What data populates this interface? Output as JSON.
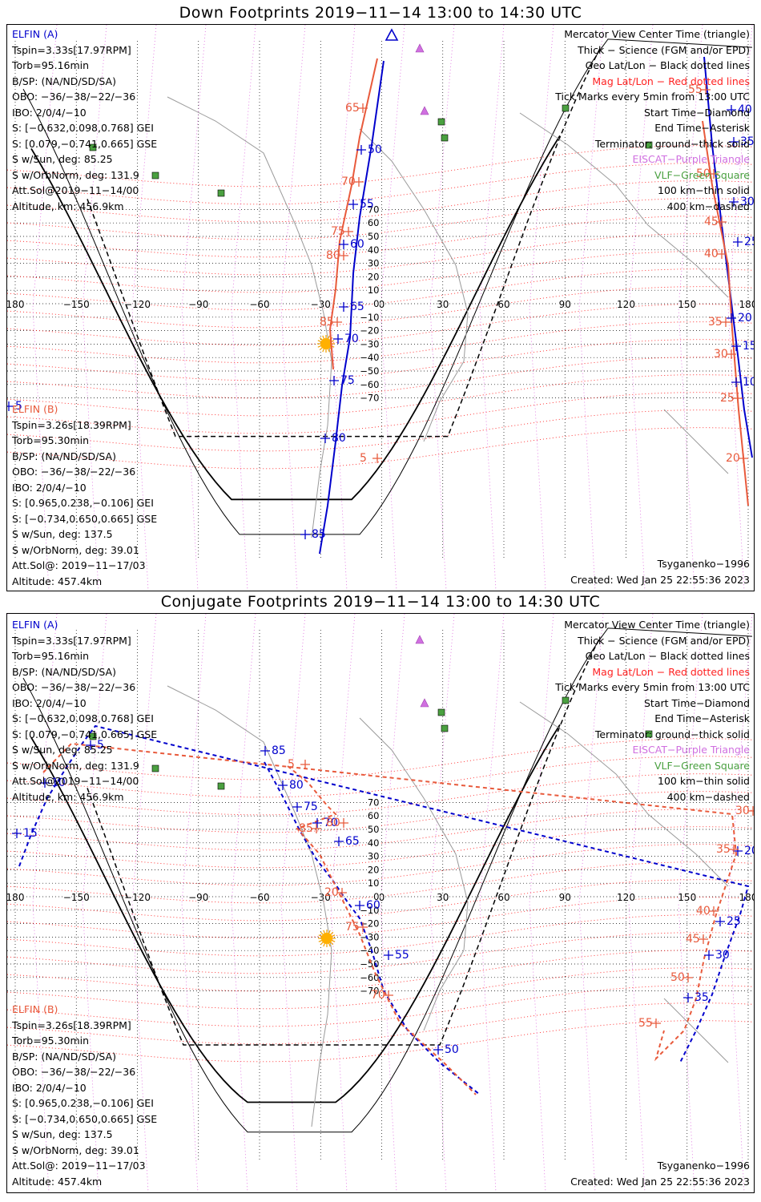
{
  "panels": [
    {
      "title": "Down Footprints 2019−11−14 13:00 to 14:30 UTC",
      "model": "Tsyganenko−1996",
      "created": "Created: Wed Jan 25 22:55:36 2023",
      "elfin_a": {
        "header": "ELFIN (A)",
        "lines": [
          "Tspin=3.33s[17.97RPM]",
          "Torb=95.16min",
          "B/SP: (NA/ND/SD/SA)",
          "OBO: −36/−38/−22/−36",
          "IBO: 2/0/4/−10",
          "S: [−0.632,0.098,0.768] GEI",
          "S: [0.079,−0.741,0.665] GSE",
          "S w/Sun, deg: 85.25",
          "S w/OrbNorm, deg: 131.9",
          "Att.Sol@2019−11−14/00",
          "Altitude, km: 456.9km"
        ]
      },
      "elfin_b": {
        "header": "ELFIN (B)",
        "lines": [
          "Tspin=3.26s[18.39RPM]",
          "Torb=95.30min",
          "B/SP: (NA/ND/SD/SA)",
          "OBO: −36/−38/−22/−36",
          "IBO: 2/0/4/−10",
          "S: [0.965,0.238,−0.106] GEI",
          "S: [−0.734,0.650,0.665] GSE",
          "S w/Sun, deg: 137.5",
          "S w/OrbNorm, deg: 39.01",
          "Att.Sol@: 2019−11−17/03",
          "Altitude: 457.4km"
        ]
      },
      "legend": [
        {
          "text": "Mercator View Center Time (triangle)",
          "color": "#000000"
        },
        {
          "text": "Thick − Science (FGM and/or EPD)",
          "color": "#000000"
        },
        {
          "text": "Geo Lat/Lon − Black dotted lines",
          "color": "#000000"
        },
        {
          "text": "Mag Lat/Lon − Red dotted lines",
          "color": "#ff2222"
        },
        {
          "text": "Tick Marks every 5min from 13:00 UTC",
          "color": "#000000"
        },
        {
          "text": "Start Time−Diamond",
          "color": "#000000"
        },
        {
          "text": "End Time−Asterisk",
          "color": "#000000"
        },
        {
          "text": "Terminator: ground−thick solid",
          "color": "#000000"
        },
        {
          "text": "EISCAT−Purple Triangle",
          "color": "#d070e0"
        },
        {
          "text": "VLF−Green Square",
          "color": "#4aa040"
        },
        {
          "text": "100 km−thin solid",
          "color": "#000000"
        },
        {
          "text": "400 km−dashed",
          "color": "#000000"
        }
      ],
      "lon_labels": [
        "180",
        "−150",
        "−120",
        "−90",
        "−60",
        "−30",
        "0",
        "30",
        "60",
        "90",
        "120",
        "150",
        "180"
      ],
      "lat_labels": [
        "70",
        "60",
        "50",
        "40",
        "30",
        "20",
        "10",
        "0",
        "−10",
        "−20",
        "−30",
        "−40",
        "−50",
        "−60",
        "−70"
      ],
      "track_a": {
        "color": "#0000cc",
        "dashed": false,
        "labels": [
          "50",
          "55",
          "60",
          "65",
          "70",
          "75",
          "80",
          "85",
          "5",
          "10",
          "15",
          "20",
          "25",
          "30",
          "35",
          "40"
        ]
      },
      "track_b": {
        "color": "#e85a3c",
        "dashed": false,
        "labels": [
          "65",
          "70",
          "75",
          "80",
          "85",
          "5",
          "20",
          "25",
          "30",
          "35",
          "40",
          "45",
          "50",
          "55"
        ]
      }
    },
    {
      "title": "Conjugate Footprints 2019−11−14 13:00 to 14:30 UTC",
      "model": "Tsyganenko−1996",
      "created": "Created: Wed Jan 25 22:55:36 2023",
      "elfin_a": {
        "header": "ELFIN (A)",
        "lines": [
          "Tspin=3.33s[17.97RPM]",
          "Torb=95.16min",
          "B/SP: (NA/ND/SD/SA)",
          "OBO: −36/−38/−22/−36",
          "IBO: 2/0/4/−10",
          "S: [−0.632,0.098,0.768] GEI",
          "S: [0.079,−0.741,0.665] GSE",
          "S w/Sun, deg: 85.25",
          "S w/OrbNorm, deg: 131.9",
          "Att.Sol@2019−11−14/00",
          "Altitude, km: 456.9km"
        ]
      },
      "elfin_b": {
        "header": "ELFIN (B)",
        "lines": [
          "Tspin=3.26s[18.39RPM]",
          "Torb=95.30min",
          "B/SP: (NA/ND/SD/SA)",
          "OBO: −36/−38/−22/−36",
          "IBO: 2/0/4/−10",
          "S: [0.965,0.238,−0.106] GEI",
          "S: [−0.734,0.650,0.665] GSE",
          "S w/Sun, deg: 137.5",
          "S w/OrbNorm, deg: 39.01",
          "Att.Sol@: 2019−11−17/03",
          "Altitude: 457.4km"
        ]
      },
      "legend": [
        {
          "text": "Mercator View Center Time (triangle)",
          "color": "#000000"
        },
        {
          "text": "Thick − Science (FGM and/or EPD)",
          "color": "#000000"
        },
        {
          "text": "Geo Lat/Lon − Black dotted lines",
          "color": "#000000"
        },
        {
          "text": "Mag Lat/Lon − Red dotted lines",
          "color": "#ff2222"
        },
        {
          "text": "Tick Marks every 5min from 13:00 UTC",
          "color": "#000000"
        },
        {
          "text": "Start Time−Diamond",
          "color": "#000000"
        },
        {
          "text": "End Time−Asterisk",
          "color": "#000000"
        },
        {
          "text": "Terminator: ground−thick solid",
          "color": "#000000"
        },
        {
          "text": "EISCAT−Purple Triangle",
          "color": "#d070e0"
        },
        {
          "text": "VLF−Green Square",
          "color": "#4aa040"
        },
        {
          "text": "100 km−thin solid",
          "color": "#000000"
        },
        {
          "text": "400 km−dashed",
          "color": "#000000"
        }
      ],
      "lon_labels": [
        "180",
        "−150",
        "−120",
        "−90",
        "−60",
        "−30",
        "0",
        "30",
        "60",
        "90",
        "120",
        "150",
        "180"
      ],
      "lat_labels": [
        "70",
        "60",
        "50",
        "40",
        "30",
        "20",
        "10",
        "0",
        "−10",
        "−20",
        "−30",
        "−40",
        "−50",
        "−60",
        "−70"
      ],
      "track_a": {
        "color": "#0000cc",
        "dashed": true,
        "labels": [
          "85",
          "80",
          "75",
          "70",
          "65",
          "60",
          "55",
          "50",
          "5",
          "10",
          "15",
          "20",
          "25",
          "30",
          "35"
        ]
      },
      "track_b": {
        "color": "#e85a3c",
        "dashed": true,
        "labels": [
          "5",
          "85",
          "80",
          "75",
          "70",
          "20",
          "30",
          "35",
          "40",
          "45",
          "50",
          "55"
        ]
      }
    }
  ]
}
